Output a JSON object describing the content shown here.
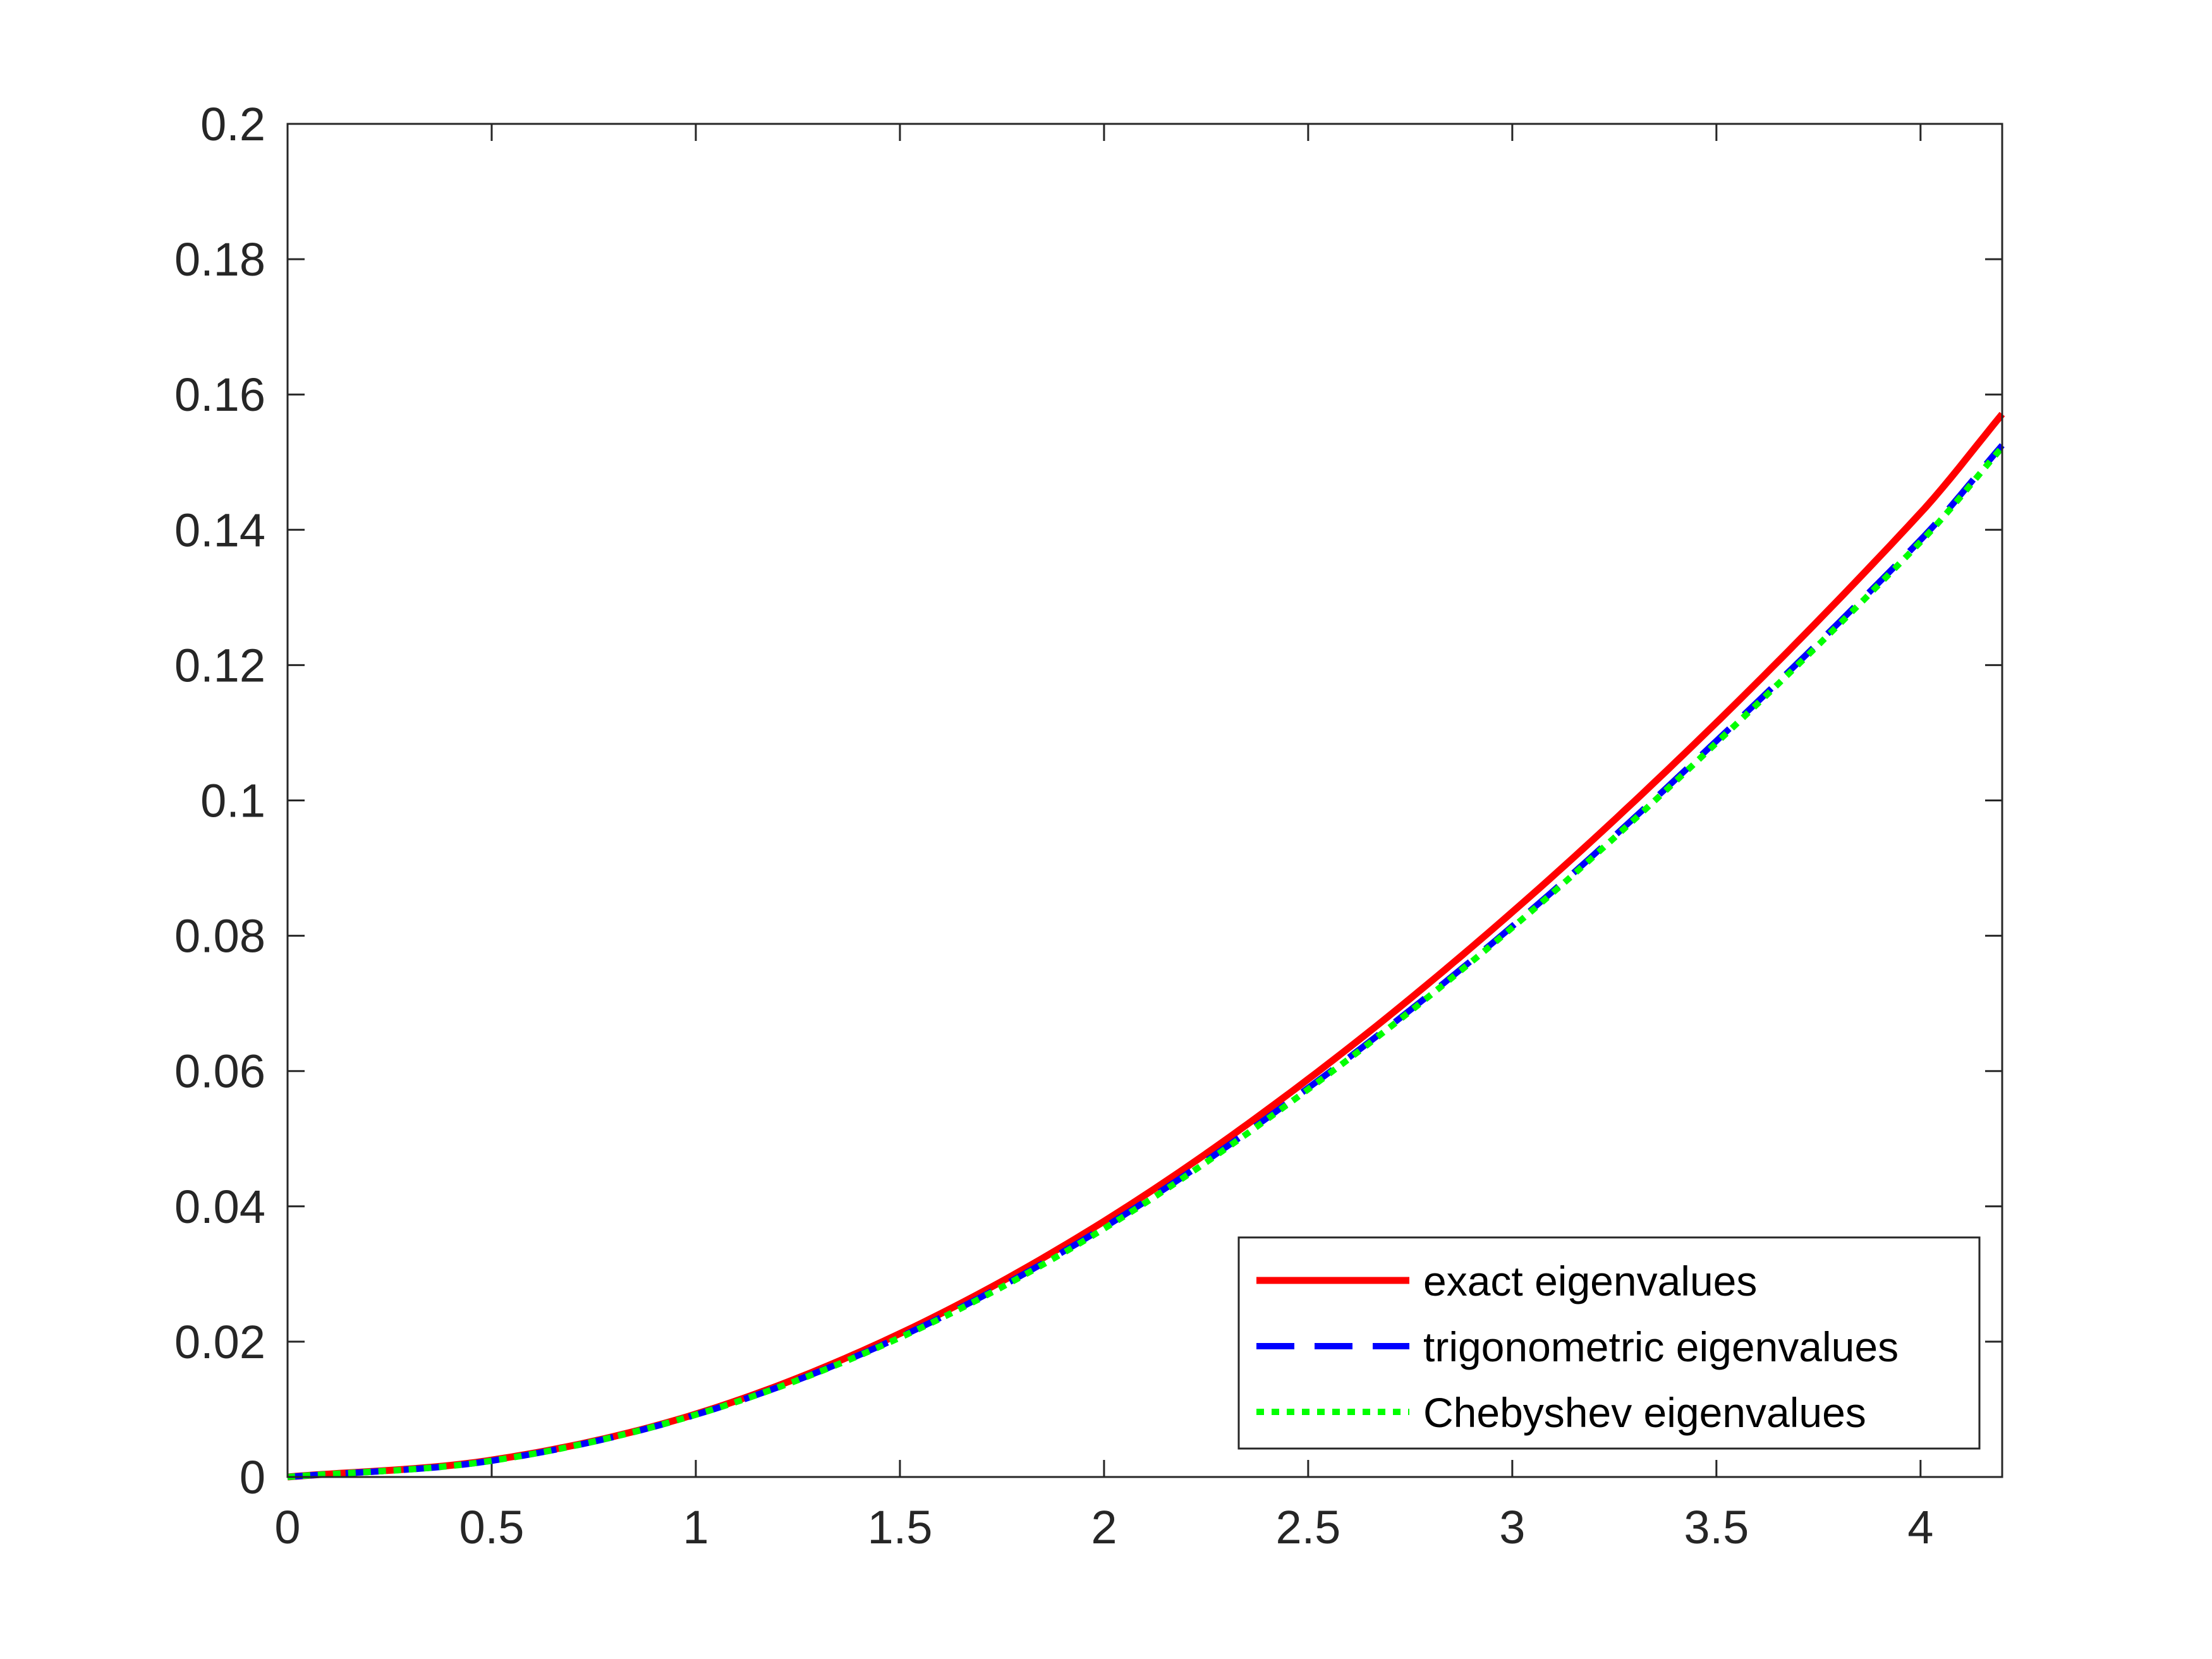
{
  "chart_data": {
    "type": "line",
    "title": "",
    "xlabel": "",
    "ylabel": "",
    "xlim": [
      0,
      4.2
    ],
    "ylim": [
      0,
      0.2
    ],
    "x_ticks": [
      0,
      0.5,
      1,
      1.5,
      2,
      2.5,
      3,
      3.5,
      4
    ],
    "x_tick_labels": [
      "0",
      "0.5",
      "1",
      "1.5",
      "2",
      "2.5",
      "3",
      "3.5",
      "4"
    ],
    "y_ticks": [
      0,
      0.02,
      0.04,
      0.06,
      0.08,
      0.1,
      0.12,
      0.14,
      0.16,
      0.18,
      0.2
    ],
    "y_tick_labels": [
      "0",
      "0.02",
      "0.04",
      "0.06",
      "0.08",
      "0.1",
      "0.12",
      "0.14",
      "0.16",
      "0.18",
      "0.2"
    ],
    "grid": false,
    "legend_position": "bottom-right",
    "x": [
      0,
      0.5,
      1,
      1.5,
      2,
      2.5,
      3,
      3.5,
      4,
      4.2
    ],
    "series": [
      {
        "name": "exact eigenvalues",
        "color": "#ff0000",
        "line_style": "solid",
        "values": [
          0,
          0.0025,
          0.0093,
          0.0212,
          0.0378,
          0.0588,
          0.0835,
          0.1115,
          0.1425,
          0.1571
        ]
      },
      {
        "name": "trigonometric eigenvalues",
        "color": "#0000ff",
        "line_style": "dashed",
        "values": [
          0,
          0.0024,
          0.0092,
          0.0207,
          0.0369,
          0.0575,
          0.0814,
          0.1088,
          0.1385,
          0.1525
        ]
      },
      {
        "name": "Chebyshev eigenvalues",
        "color": "#00ff00",
        "line_style": "dotted",
        "values": [
          0,
          0.0024,
          0.0092,
          0.0206,
          0.0367,
          0.0573,
          0.0812,
          0.1085,
          0.1382,
          0.1522
        ]
      }
    ]
  }
}
